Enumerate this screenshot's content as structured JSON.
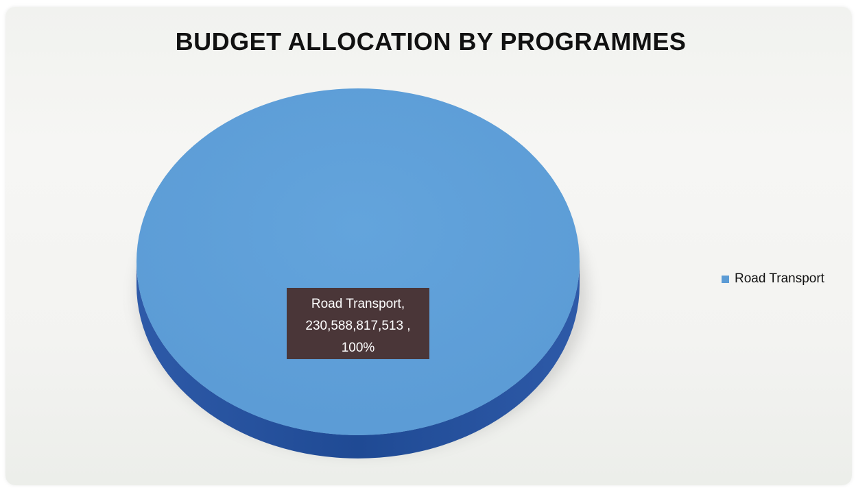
{
  "colors": {
    "slice_top": "#5b9bd5",
    "slice_side": "#2e5aa8",
    "label_box": "#4a3638",
    "label_text": "#ffffff"
  },
  "chart_data": {
    "type": "pie",
    "title": "BUDGET ALLOCATION BY PROGRAMMES",
    "slices": [
      {
        "label": "Road Transport",
        "value": 230588817513,
        "percent": 100,
        "data_label": [
          "Road Transport,",
          "230,588,817,513 ,",
          "100%"
        ]
      }
    ],
    "legend": {
      "placement": "right",
      "entries": [
        "Road Transport"
      ]
    },
    "style": "3d"
  }
}
